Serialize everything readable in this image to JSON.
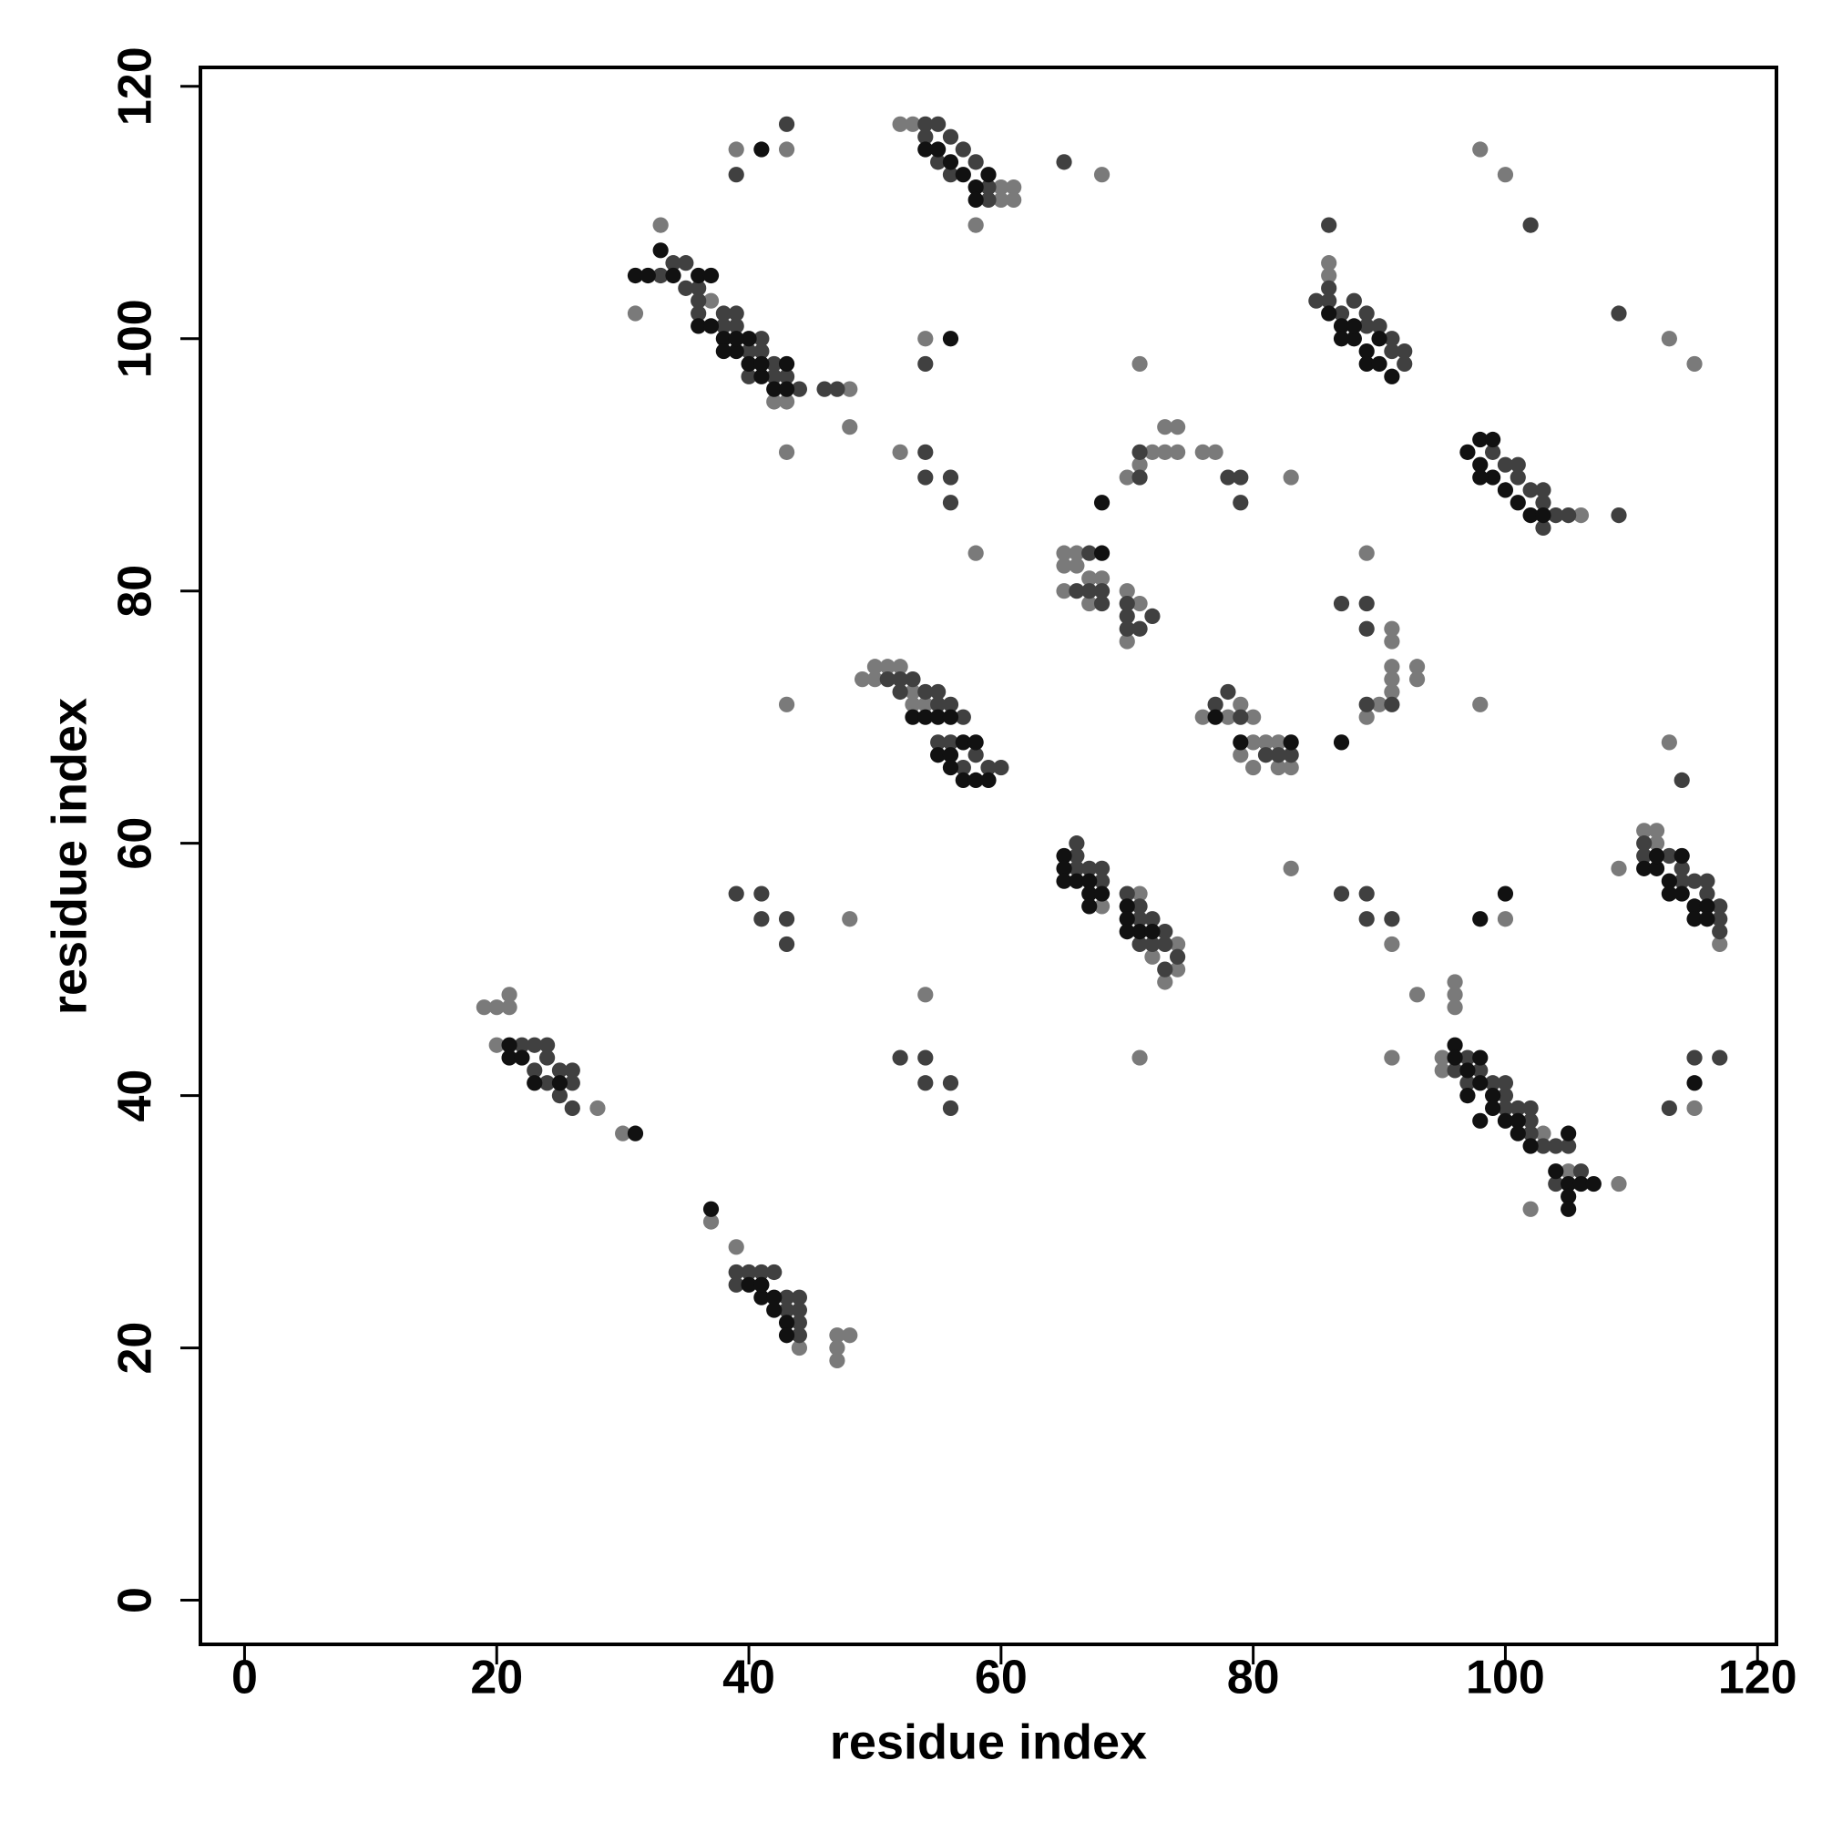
{
  "chart_data": {
    "type": "scatter",
    "x_label": "residue index",
    "y_label": "residue index",
    "xlim": [
      -3.5,
      121.5
    ],
    "ylim": [
      -3.5,
      121.5
    ],
    "xticks": [
      0,
      20,
      40,
      60,
      80,
      100,
      120
    ],
    "yticks": [
      0,
      20,
      40,
      60,
      80,
      100,
      120
    ],
    "series": [
      {
        "color": "#7a7a7a",
        "x": [
          19,
          20,
          21,
          21,
          20,
          28,
          30,
          37,
          39,
          44,
          47,
          48,
          47,
          47,
          33,
          31,
          37,
          42,
          43,
          43,
          39,
          43,
          52,
          53,
          58,
          60,
          61,
          61,
          60,
          48,
          48,
          52,
          58,
          54,
          43,
          49,
          50,
          51,
          52,
          50,
          53,
          53,
          54,
          48,
          54,
          68,
          71,
          74,
          74,
          73,
          72,
          71,
          83,
          65,
          66,
          65,
          66,
          65,
          67,
          68,
          67,
          70,
          71,
          70,
          70,
          71,
          72,
          73,
          73,
          74,
          74,
          76,
          77,
          71,
          83,
          76,
          78,
          79,
          80,
          79,
          80,
          81,
          82,
          82,
          83,
          80,
          89,
          89,
          90,
          91,
          91,
          91,
          91,
          91,
          93,
          93,
          91,
          93,
          91,
          98,
          86,
          86,
          106,
          98,
          100,
          113,
          115,
          96,
          96,
          96,
          95,
          95,
          103,
          109,
          102,
          105,
          100,
          109,
          111,
          112,
          112,
          113,
          117,
          115,
          68
        ],
        "y": [
          47,
          47,
          47,
          48,
          44,
          39,
          37,
          30,
          28,
          20,
          21,
          21,
          20,
          19,
          109,
          102,
          103,
          95,
          95,
          91,
          115,
          115,
          117,
          117,
          109,
          112,
          112,
          111,
          111,
          96,
          93,
          91,
          83,
          100,
          71,
          73,
          74,
          74,
          74,
          73,
          72,
          71,
          71,
          54,
          48,
          55,
          56,
          52,
          50,
          49,
          51,
          43,
          58,
          83,
          83,
          82,
          82,
          80,
          81,
          81,
          79,
          76,
          79,
          80,
          89,
          90,
          91,
          91,
          93,
          93,
          91,
          91,
          91,
          98,
          89,
          70,
          70,
          71,
          70,
          67,
          66,
          68,
          68,
          66,
          66,
          68,
          83,
          70,
          71,
          77,
          76,
          74,
          73,
          72,
          74,
          73,
          52,
          48,
          43,
          71,
          106,
          105,
          86,
          115,
          113,
          100,
          98,
          49,
          48,
          47,
          43,
          42,
          37,
          33,
          31,
          34,
          54,
          58,
          61,
          61,
          60,
          68,
          52,
          39,
          113
        ]
      },
      {
        "color": "#404040",
        "x": [
          22,
          23,
          24,
          24,
          25,
          26,
          26,
          25,
          26,
          23,
          24,
          39,
          40,
          41,
          42,
          39,
          43,
          44,
          44,
          44,
          44,
          43,
          33,
          34,
          35,
          35,
          36,
          36,
          36,
          38,
          38,
          39,
          39,
          40,
          40,
          41,
          41,
          42,
          42,
          43,
          44,
          39,
          43,
          54,
          55,
          54,
          56,
          57,
          55,
          56,
          58,
          59,
          59,
          46,
          47,
          54,
          54,
          56,
          56,
          54,
          51,
          52,
          53,
          52,
          54,
          55,
          55,
          56,
          57,
          55,
          56,
          58,
          59,
          60,
          57,
          39,
          41,
          41,
          43,
          43,
          52,
          54,
          54,
          56,
          56,
          66,
          66,
          66,
          67,
          68,
          68,
          70,
          71,
          71,
          72,
          72,
          73,
          73,
          74,
          73,
          71,
          67,
          67,
          68,
          68,
          66,
          70,
          70,
          72,
          70,
          71,
          71,
          71,
          78,
          79,
          79,
          77,
          78,
          79,
          81,
          82,
          83,
          87,
          89,
          89,
          89,
          91,
          87,
          89,
          89,
          91,
          86,
          85,
          86,
          86,
          87,
          88,
          89,
          89,
          90,
          91,
          91,
          92,
          92,
          99,
          100,
          101,
          101,
          102,
          103,
          103,
          104,
          105,
          103,
          109,
          102,
          109,
          96,
          97,
          97,
          98,
          99,
          100,
          100,
          100,
          101,
          102,
          102,
          102,
          103,
          104,
          105,
          106,
          104,
          111,
          111,
          113,
          114,
          114,
          115,
          116,
          116,
          117,
          117,
          117,
          114,
          113,
          115,
          117,
          65
        ],
        "y": [
          44,
          44,
          44,
          43,
          42,
          42,
          41,
          40,
          39,
          42,
          41,
          26,
          26,
          26,
          26,
          25,
          24,
          24,
          23,
          22,
          21,
          23,
          105,
          106,
          106,
          104,
          104,
          103,
          102,
          102,
          101,
          102,
          101,
          99,
          97,
          100,
          99,
          97,
          98,
          97,
          96,
          113,
          117,
          117,
          117,
          116,
          116,
          115,
          114,
          113,
          114,
          112,
          111,
          96,
          96,
          91,
          89,
          89,
          87,
          98,
          73,
          73,
          73,
          72,
          72,
          72,
          71,
          71,
          70,
          68,
          68,
          67,
          66,
          66,
          66,
          56,
          56,
          54,
          54,
          52,
          43,
          43,
          41,
          41,
          39,
          60,
          59,
          58,
          58,
          58,
          57,
          56,
          55,
          54,
          54,
          52,
          53,
          52,
          51,
          50,
          52,
          83,
          80,
          80,
          79,
          80,
          79,
          78,
          78,
          77,
          77,
          89,
          91,
          89,
          89,
          87,
          71,
          72,
          70,
          67,
          67,
          67,
          79,
          79,
          77,
          71,
          71,
          56,
          56,
          54,
          54,
          109,
          103,
          104,
          103,
          102,
          103,
          102,
          101,
          101,
          100,
          99,
          99,
          98,
          91,
          90,
          90,
          89,
          88,
          88,
          87,
          86,
          86,
          85,
          86,
          109,
          102,
          42,
          43,
          41,
          42,
          41,
          41,
          40,
          39,
          39,
          39,
          38,
          37,
          36,
          36,
          36,
          34,
          33,
          60,
          59,
          59,
          58,
          57,
          57,
          57,
          56,
          55,
          54,
          53,
          65,
          39,
          43,
          43,
          114
        ]
      },
      {
        "color": "#111111",
        "x": [
          21,
          21,
          22,
          23,
          25,
          31,
          37,
          40,
          41,
          42,
          43,
          43,
          41,
          42,
          31,
          32,
          33,
          34,
          36,
          37,
          36,
          37,
          38,
          39,
          38,
          40,
          41,
          42,
          43,
          43,
          40,
          39,
          41,
          41,
          54,
          55,
          56,
          57,
          58,
          58,
          59,
          56,
          53,
          54,
          55,
          56,
          55,
          56,
          57,
          58,
          57,
          58,
          59,
          56,
          65,
          65,
          65,
          66,
          67,
          67,
          68,
          67,
          70,
          70,
          71,
          72,
          70,
          68,
          68,
          77,
          79,
          83,
          87,
          86,
          87,
          87,
          88,
          89,
          89,
          90,
          91,
          90,
          88,
          97,
          98,
          98,
          99,
          100,
          101,
          102,
          103,
          99,
          98,
          96,
          96,
          97,
          98,
          98,
          99,
          99,
          100,
          101,
          101,
          102,
          105,
          104,
          105,
          105,
          105,
          106,
          107,
          98,
          97,
          98,
          100,
          111,
          112,
          113,
          113,
          114,
          114,
          115,
          115,
          116,
          116,
          112,
          115
        ],
        "y": [
          44,
          43,
          43,
          41,
          41,
          37,
          31,
          25,
          24,
          23,
          22,
          21,
          25,
          24,
          105,
          105,
          107,
          105,
          105,
          105,
          101,
          101,
          100,
          99,
          99,
          98,
          97,
          96,
          96,
          98,
          100,
          100,
          98,
          115,
          115,
          115,
          114,
          113,
          112,
          111,
          113,
          100,
          70,
          70,
          70,
          70,
          67,
          67,
          68,
          68,
          65,
          65,
          65,
          66,
          59,
          58,
          57,
          57,
          57,
          56,
          56,
          55,
          55,
          54,
          53,
          53,
          53,
          83,
          87,
          70,
          68,
          68,
          68,
          102,
          101,
          100,
          100,
          99,
          98,
          98,
          97,
          100,
          101,
          91,
          92,
          90,
          89,
          88,
          87,
          86,
          86,
          92,
          89,
          44,
          43,
          42,
          43,
          41,
          40,
          39,
          38,
          38,
          37,
          36,
          37,
          34,
          33,
          32,
          31,
          33,
          33,
          38,
          40,
          54,
          56,
          58,
          58,
          57,
          56,
          56,
          59,
          55,
          54,
          55,
          54,
          59,
          41
        ]
      }
    ]
  }
}
